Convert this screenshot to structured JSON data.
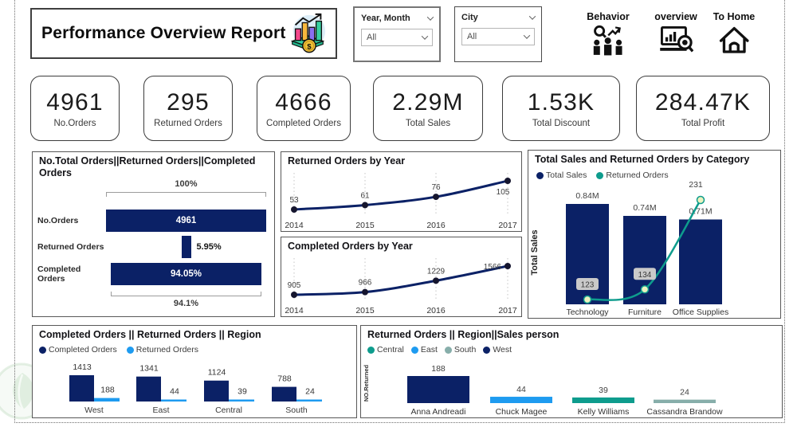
{
  "header": {
    "title": "Performance Overview Report",
    "title_icon": "bar-chart-coin-icon",
    "slicers": [
      {
        "label": "Year, Month",
        "value": "All"
      },
      {
        "label": "City",
        "value": "All"
      }
    ],
    "nav": [
      {
        "label": "Behavior",
        "icon": "behavior-people-search-icon"
      },
      {
        "label": "overview",
        "icon": "report-magnifier-icon"
      },
      {
        "label": "To Home",
        "icon": "home-icon"
      }
    ]
  },
  "kpis": [
    {
      "value": "4961",
      "label": "No.Orders"
    },
    {
      "value": "295",
      "label": "Returned Orders"
    },
    {
      "value": "4666",
      "label": "Completed Orders"
    },
    {
      "value": "2.29M",
      "label": "Total Sales"
    },
    {
      "value": "1.53K",
      "label": "Total Discount"
    },
    {
      "value": "284.47K",
      "label": "Total Profit"
    }
  ],
  "colors": {
    "navy": "#0b2166",
    "blue": "#1e9bf0",
    "teal": "#0e9c8d",
    "sage": "#87aeaa",
    "line_marker_fill": "#ecf2bf",
    "badge_bg": "#c9c9c9",
    "grid": "#c4c4c4",
    "label_text": "#3f3f3f"
  },
  "watermark_icon": "leaf-logo-watermark",
  "chart_data": [
    {
      "id": "funnel",
      "type": "funnel",
      "title": "No.Total Orders||Returned Orders||Completed Orders",
      "categories": [
        "No.Orders",
        "Returned Orders",
        "Completed Orders"
      ],
      "values_labels": [
        "4961",
        "5.95%",
        "94.05%"
      ],
      "widths_pct": [
        100,
        5.95,
        94.05
      ],
      "label_inside": [
        true,
        false,
        true
      ],
      "top_bracket": "100%",
      "bottom_bracket": "94.1%"
    },
    {
      "id": "returned_by_year",
      "type": "line",
      "title": "Returned Orders by Year",
      "x": [
        "2014",
        "2015",
        "2016",
        "2017"
      ],
      "values": [
        53,
        61,
        76,
        105
      ]
    },
    {
      "id": "completed_by_year",
      "type": "line",
      "title": "Completed Orders by Year",
      "x": [
        "2014",
        "2015",
        "2016",
        "2017"
      ],
      "values": [
        905,
        966,
        1229,
        1566
      ]
    },
    {
      "id": "sales_by_category",
      "type": "combo",
      "title": "Total Sales and Returned Orders by Category",
      "ylabel": "Total Sales",
      "legend": [
        "Total Sales",
        "Returned Orders"
      ],
      "categories": [
        "Technology",
        "Furniture",
        "Office Supplies"
      ],
      "bar_values": [
        0.84,
        0.74,
        0.71
      ],
      "bar_labels": [
        "0.84M",
        "0.74M",
        "0.71M"
      ],
      "line_values": [
        123,
        134,
        231
      ]
    },
    {
      "id": "orders_by_region",
      "type": "grouped_bar",
      "title": "Completed Orders || Returned Orders || Region",
      "legend": [
        "Completed Orders",
        "Returned Orders"
      ],
      "categories": [
        "West",
        "East",
        "Central",
        "South"
      ],
      "series": [
        {
          "name": "Completed Orders",
          "values": [
            1413,
            1341,
            1124,
            788
          ]
        },
        {
          "name": "Returned Orders",
          "values": [
            188,
            44,
            39,
            24
          ]
        }
      ]
    },
    {
      "id": "returned_by_person",
      "type": "bar",
      "title": "Returned Orders || Region||Sales person",
      "ylabel": "NO.Returned",
      "legend": [
        {
          "label": "Central",
          "color": "#0e9c8d"
        },
        {
          "label": "East",
          "color": "#1e9bf0"
        },
        {
          "label": "South",
          "color": "#87aeaa"
        },
        {
          "label": "West",
          "color": "#0b2166"
        }
      ],
      "categories": [
        "Anna Andreadi",
        "Chuck Magee",
        "Kelly Williams",
        "Cassandra Brandow"
      ],
      "values": [
        188,
        44,
        39,
        24
      ],
      "bar_colors": [
        "#0b2166",
        "#1e9bf0",
        "#0e9c8d",
        "#87aeaa"
      ]
    }
  ]
}
